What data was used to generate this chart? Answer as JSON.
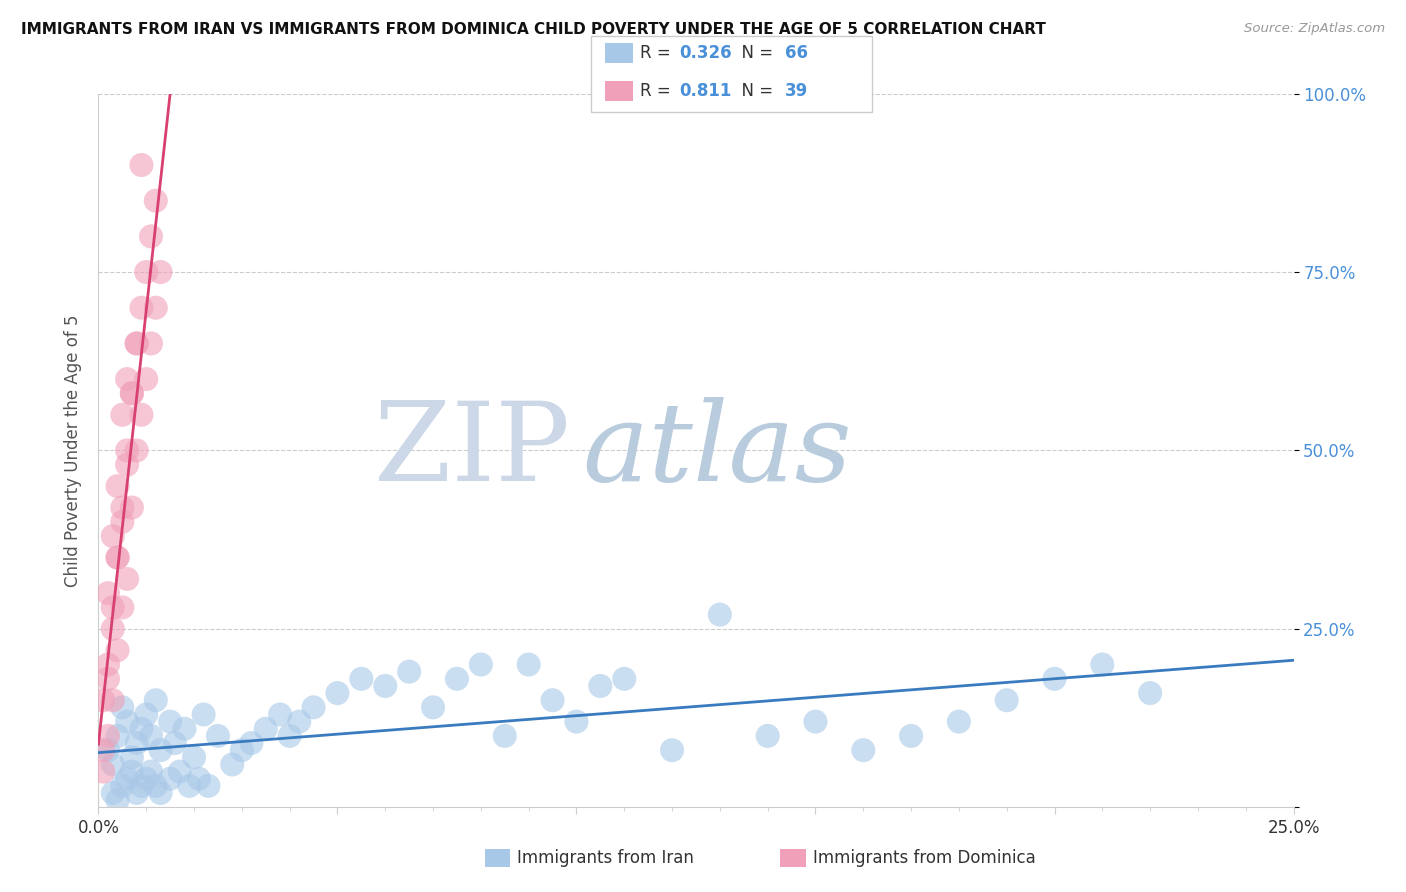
{
  "title": "IMMIGRANTS FROM IRAN VS IMMIGRANTS FROM DOMINICA CHILD POVERTY UNDER THE AGE OF 5 CORRELATION CHART",
  "source": "Source: ZipAtlas.com",
  "ylabel": "Child Poverty Under the Age of 5",
  "xlim": [
    0,
    0.25
  ],
  "ylim": [
    0,
    1.0
  ],
  "iran_R": 0.326,
  "iran_N": 66,
  "dominica_R": 0.811,
  "dominica_N": 39,
  "iran_scatter_color": "#a8c8e8",
  "iran_line_color": "#3a7bbf",
  "dominica_scatter_color": "#f0a0b8",
  "dominica_line_color": "#d84070",
  "tick_color": "#4a90d9",
  "watermark_zip_color": "#ccd8e8",
  "watermark_atlas_color": "#b0c8e0",
  "iran_x": [
    0.002,
    0.003,
    0.004,
    0.005,
    0.006,
    0.007,
    0.008,
    0.009,
    0.01,
    0.011,
    0.012,
    0.013,
    0.015,
    0.016,
    0.018,
    0.02,
    0.022,
    0.025,
    0.028,
    0.03,
    0.032,
    0.035,
    0.038,
    0.04,
    0.042,
    0.045,
    0.05,
    0.055,
    0.06,
    0.065,
    0.07,
    0.075,
    0.08,
    0.085,
    0.09,
    0.095,
    0.1,
    0.105,
    0.11,
    0.12,
    0.13,
    0.14,
    0.15,
    0.16,
    0.17,
    0.18,
    0.19,
    0.2,
    0.21,
    0.22,
    0.003,
    0.004,
    0.005,
    0.006,
    0.007,
    0.008,
    0.009,
    0.01,
    0.011,
    0.012,
    0.013,
    0.015,
    0.017,
    0.019,
    0.021,
    0.023
  ],
  "iran_y": [
    0.08,
    0.06,
    0.1,
    0.14,
    0.12,
    0.07,
    0.09,
    0.11,
    0.13,
    0.1,
    0.15,
    0.08,
    0.12,
    0.09,
    0.11,
    0.07,
    0.13,
    0.1,
    0.06,
    0.08,
    0.09,
    0.11,
    0.13,
    0.1,
    0.12,
    0.14,
    0.16,
    0.18,
    0.17,
    0.19,
    0.14,
    0.18,
    0.2,
    0.1,
    0.2,
    0.15,
    0.12,
    0.17,
    0.18,
    0.08,
    0.27,
    0.1,
    0.12,
    0.08,
    0.1,
    0.12,
    0.15,
    0.18,
    0.2,
    0.16,
    0.02,
    0.01,
    0.03,
    0.04,
    0.05,
    0.02,
    0.03,
    0.04,
    0.05,
    0.03,
    0.02,
    0.04,
    0.05,
    0.03,
    0.04,
    0.03
  ],
  "dominica_x": [
    0.001,
    0.001,
    0.002,
    0.002,
    0.002,
    0.003,
    0.003,
    0.003,
    0.004,
    0.004,
    0.004,
    0.005,
    0.005,
    0.005,
    0.006,
    0.006,
    0.006,
    0.007,
    0.007,
    0.008,
    0.008,
    0.009,
    0.009,
    0.01,
    0.01,
    0.011,
    0.011,
    0.012,
    0.012,
    0.013,
    0.001,
    0.002,
    0.003,
    0.004,
    0.005,
    0.006,
    0.007,
    0.008,
    0.009
  ],
  "dominica_y": [
    0.05,
    0.15,
    0.1,
    0.2,
    0.3,
    0.15,
    0.25,
    0.38,
    0.22,
    0.35,
    0.45,
    0.28,
    0.4,
    0.55,
    0.32,
    0.48,
    0.6,
    0.42,
    0.58,
    0.5,
    0.65,
    0.55,
    0.7,
    0.6,
    0.75,
    0.65,
    0.8,
    0.7,
    0.85,
    0.75,
    0.08,
    0.18,
    0.28,
    0.35,
    0.42,
    0.5,
    0.58,
    0.65,
    0.9
  ]
}
